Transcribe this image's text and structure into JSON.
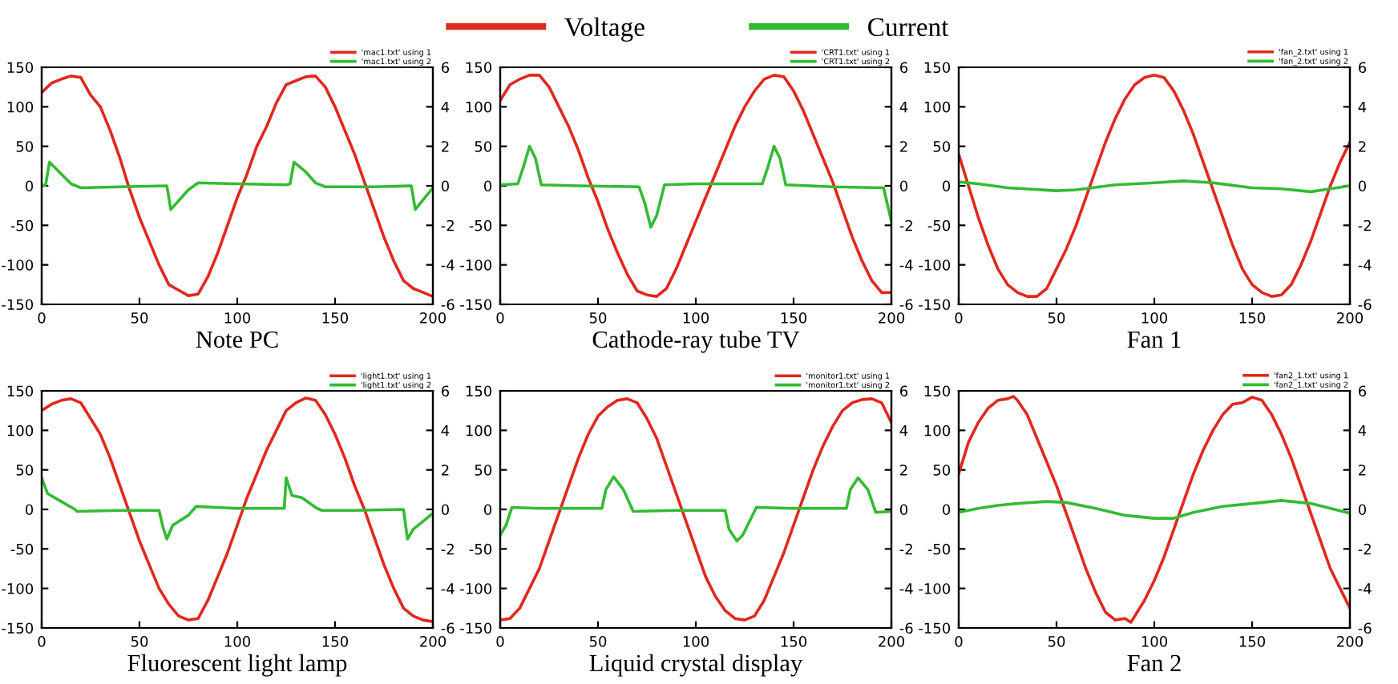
{
  "chart_data": [
    {
      "type": "other",
      "legend": "top",
      "series": [
        {
          "name": "Voltage",
          "color": "#e0281e"
        },
        {
          "name": "Current",
          "color": "#33bb33"
        }
      ]
    },
    {
      "type": "line",
      "xlabel": "Note PC",
      "xlim": [
        0,
        200
      ],
      "xticks": [
        0,
        50,
        100,
        150,
        200
      ],
      "ylim": [
        -150,
        150
      ],
      "yticks": [
        -150,
        -100,
        -50,
        0,
        50,
        100,
        150
      ],
      "y2lim": [
        -6,
        6
      ],
      "y2ticks": [
        -6,
        -4,
        -2,
        0,
        2,
        4,
        6
      ],
      "legend": "top right",
      "grid": false,
      "series": [
        {
          "name": "'mac1.txt' using 1",
          "color": "#e0281e",
          "x": [
            0,
            5,
            10,
            15,
            20,
            25,
            30,
            35,
            40,
            45,
            50,
            55,
            60,
            65,
            70,
            75,
            80,
            85,
            90,
            95,
            100,
            105,
            110,
            115,
            120,
            125,
            130,
            135,
            140,
            145,
            150,
            155,
            160,
            165,
            170,
            175,
            180,
            185,
            190,
            195,
            200
          ],
          "values": [
            118,
            130,
            135,
            139,
            137,
            115,
            100,
            70,
            35,
            -5,
            -40,
            -70,
            -100,
            -125,
            -132,
            -139,
            -137,
            -115,
            -85,
            -50,
            -15,
            15,
            50,
            75,
            105,
            128,
            133,
            138,
            139,
            125,
            100,
            70,
            40,
            5,
            -30,
            -65,
            -95,
            -120,
            -130,
            -135,
            -140
          ]
        },
        {
          "name": "'mac1.txt' using 2",
          "color": "#33bb33",
          "axis": "y2",
          "x": [
            0,
            2,
            4,
            10,
            15,
            20,
            40,
            64,
            66,
            75,
            80,
            100,
            125,
            127,
            129,
            135,
            140,
            145,
            170,
            189,
            191,
            200
          ],
          "values": [
            0,
            0.05,
            1.2,
            0.6,
            0.1,
            -0.1,
            -0.05,
            0,
            -1.2,
            -0.2,
            0.15,
            0.1,
            0.05,
            0.1,
            1.2,
            0.7,
            0.15,
            -0.05,
            -0.05,
            0,
            -1.2,
            -0.1
          ]
        }
      ]
    },
    {
      "type": "line",
      "xlabel": "Cathode-ray tube TV",
      "xlim": [
        0,
        200
      ],
      "xticks": [
        0,
        50,
        100,
        150,
        200
      ],
      "ylim": [
        -150,
        150
      ],
      "yticks": [
        -150,
        -100,
        -50,
        0,
        50,
        100,
        150
      ],
      "y2lim": [
        -6,
        6
      ],
      "y2ticks": [
        -6,
        -4,
        -2,
        0,
        2,
        4,
        6
      ],
      "legend": "top right",
      "grid": false,
      "series": [
        {
          "name": "'CRT1.txt' using 1",
          "color": "#e0281e",
          "x": [
            0,
            5,
            10,
            15,
            20,
            25,
            30,
            35,
            40,
            45,
            50,
            55,
            60,
            65,
            70,
            75,
            80,
            85,
            90,
            95,
            100,
            105,
            110,
            115,
            120,
            125,
            130,
            135,
            140,
            145,
            150,
            155,
            160,
            165,
            170,
            175,
            180,
            185,
            190,
            195,
            200
          ],
          "values": [
            108,
            128,
            135,
            140,
            140,
            125,
            100,
            75,
            45,
            10,
            -20,
            -55,
            -85,
            -112,
            -133,
            -138,
            -140,
            -130,
            -105,
            -75,
            -45,
            -15,
            15,
            45,
            75,
            100,
            120,
            135,
            140,
            138,
            120,
            95,
            65,
            35,
            5,
            -30,
            -65,
            -95,
            -120,
            -135,
            -135
          ]
        },
        {
          "name": "'CRT1.txt' using 2",
          "color": "#33bb33",
          "axis": "y2",
          "x": [
            0,
            9,
            12,
            15,
            18,
            21,
            40,
            71,
            74,
            77,
            80,
            84,
            100,
            134,
            137,
            140,
            143,
            146,
            170,
            196,
            200
          ],
          "values": [
            0.05,
            0.1,
            1.0,
            2.0,
            1.4,
            0.05,
            0,
            -0.05,
            -0.9,
            -2.1,
            -1.5,
            0.05,
            0.1,
            0.1,
            1.0,
            2.0,
            1.4,
            0.05,
            -0.05,
            -0.1,
            -1.8
          ]
        }
      ]
    },
    {
      "type": "line",
      "xlabel": "Fan 1",
      "xlim": [
        0,
        200
      ],
      "xticks": [
        0,
        50,
        100,
        150,
        200
      ],
      "ylim": [
        -150,
        150
      ],
      "yticks": [
        -150,
        -100,
        -50,
        0,
        50,
        100,
        150
      ],
      "y2lim": [
        -6,
        6
      ],
      "y2ticks": [
        -6,
        -4,
        -2,
        0,
        2,
        4,
        6
      ],
      "legend": "top right",
      "grid": false,
      "series": [
        {
          "name": "'fan_2.txt' using 1",
          "color": "#e0281e",
          "x": [
            0,
            5,
            10,
            15,
            20,
            25,
            30,
            35,
            40,
            45,
            50,
            55,
            60,
            65,
            70,
            75,
            80,
            85,
            90,
            95,
            100,
            105,
            110,
            115,
            120,
            125,
            130,
            135,
            140,
            145,
            150,
            155,
            160,
            165,
            170,
            175,
            180,
            185,
            190,
            195,
            200
          ],
          "values": [
            40,
            0,
            -40,
            -75,
            -105,
            -125,
            -135,
            -140,
            -140,
            -130,
            -105,
            -80,
            -50,
            -15,
            20,
            55,
            85,
            110,
            128,
            137,
            140,
            137,
            120,
            95,
            65,
            30,
            -5,
            -40,
            -75,
            -105,
            -125,
            -135,
            -140,
            -138,
            -125,
            -100,
            -70,
            -35,
            0,
            30,
            55
          ]
        },
        {
          "name": "'fan_2.txt' using 2",
          "color": "#33bb33",
          "axis": "y2",
          "x": [
            0,
            10,
            25,
            50,
            60,
            80,
            100,
            115,
            130,
            150,
            165,
            180,
            190,
            200
          ],
          "values": [
            0.2,
            0.1,
            -0.1,
            -0.25,
            -0.2,
            0.05,
            0.15,
            0.25,
            0.15,
            -0.1,
            -0.15,
            -0.3,
            -0.15,
            0
          ]
        }
      ]
    },
    {
      "type": "line",
      "xlabel": "Fluorescent light lamp",
      "xlim": [
        0,
        200
      ],
      "xticks": [
        0,
        50,
        100,
        150,
        200
      ],
      "ylim": [
        -150,
        150
      ],
      "yticks": [
        -150,
        -100,
        -50,
        0,
        50,
        100,
        150
      ],
      "y2lim": [
        -6,
        6
      ],
      "y2ticks": [
        -6,
        -4,
        -2,
        0,
        2,
        4,
        6
      ],
      "legend": "top right",
      "grid": false,
      "series": [
        {
          "name": "'light1.txt' using 1",
          "color": "#e0281e",
          "x": [
            0,
            5,
            10,
            15,
            20,
            25,
            30,
            35,
            40,
            45,
            50,
            55,
            60,
            65,
            70,
            75,
            80,
            85,
            90,
            95,
            100,
            105,
            110,
            115,
            120,
            125,
            130,
            135,
            140,
            145,
            150,
            155,
            160,
            165,
            170,
            175,
            180,
            185,
            190,
            195,
            200
          ],
          "values": [
            125,
            133,
            138,
            140,
            135,
            115,
            95,
            65,
            30,
            -5,
            -40,
            -70,
            -100,
            -120,
            -135,
            -140,
            -138,
            -115,
            -85,
            -55,
            -20,
            15,
            45,
            75,
            100,
            125,
            135,
            141,
            138,
            120,
            95,
            65,
            30,
            0,
            -35,
            -70,
            -100,
            -125,
            -135,
            -140,
            -142
          ]
        },
        {
          "name": "'light1.txt' using 2",
          "color": "#33bb33",
          "axis": "y2",
          "x": [
            0,
            3,
            10,
            17,
            18,
            40,
            60,
            62,
            64,
            67,
            75,
            79,
            100,
            124,
            125,
            128,
            133,
            140,
            143,
            160,
            185,
            187,
            190,
            195,
            200
          ],
          "values": [
            1.6,
            0.8,
            0.4,
            0,
            -0.1,
            -0.05,
            -0.05,
            -0.9,
            -1.5,
            -0.8,
            -0.3,
            0.15,
            0.05,
            0.05,
            1.6,
            0.7,
            0.6,
            0.1,
            -0.05,
            -0.05,
            0,
            -1.5,
            -1.0,
            -0.6,
            -0.2
          ]
        }
      ]
    },
    {
      "type": "line",
      "xlabel": "Liquid crystal display",
      "xlim": [
        0,
        200
      ],
      "xticks": [
        0,
        50,
        100,
        150,
        200
      ],
      "ylim": [
        -150,
        150
      ],
      "yticks": [
        -150,
        -100,
        -50,
        0,
        50,
        100,
        150
      ],
      "y2lim": [
        -6,
        6
      ],
      "y2ticks": [
        -6,
        -4,
        -2,
        0,
        2,
        4,
        6
      ],
      "legend": "top right",
      "grid": false,
      "series": [
        {
          "name": "'monitor1.txt' using 1",
          "color": "#e0281e",
          "x": [
            0,
            5,
            10,
            15,
            20,
            25,
            30,
            35,
            40,
            45,
            50,
            55,
            60,
            65,
            70,
            75,
            80,
            85,
            90,
            95,
            100,
            105,
            110,
            115,
            120,
            125,
            130,
            135,
            140,
            145,
            150,
            155,
            160,
            165,
            170,
            175,
            180,
            185,
            190,
            195,
            200
          ],
          "values": [
            -140,
            -138,
            -125,
            -100,
            -75,
            -40,
            -5,
            30,
            65,
            95,
            118,
            130,
            138,
            140,
            135,
            115,
            90,
            55,
            20,
            -15,
            -50,
            -85,
            -110,
            -128,
            -138,
            -140,
            -135,
            -115,
            -85,
            -55,
            -20,
            15,
            50,
            80,
            105,
            125,
            135,
            139,
            140,
            135,
            110
          ]
        },
        {
          "name": "'monitor1.txt' using 2",
          "color": "#33bb33",
          "axis": "y2",
          "x": [
            0,
            3,
            6,
            20,
            52,
            54,
            58,
            63,
            68,
            90,
            115,
            117,
            121,
            124,
            131,
            150,
            177,
            179,
            183,
            188,
            192,
            200
          ],
          "values": [
            -1.3,
            -0.8,
            0.1,
            0.05,
            0.05,
            1.0,
            1.65,
            1.0,
            -0.1,
            -0.05,
            -0.05,
            -1.0,
            -1.6,
            -1.3,
            0.1,
            0.05,
            0.05,
            1.0,
            1.6,
            1.0,
            -0.15,
            -0.1
          ]
        }
      ]
    },
    {
      "type": "line",
      "xlabel": "Fan 2",
      "xlim": [
        0,
        200
      ],
      "xticks": [
        0,
        50,
        100,
        150,
        200
      ],
      "ylim": [
        -150,
        150
      ],
      "yticks": [
        -150,
        -100,
        -50,
        0,
        50,
        100,
        150
      ],
      "y2lim": [
        -6,
        6
      ],
      "y2ticks": [
        -6,
        -4,
        -2,
        0,
        2,
        4,
        6
      ],
      "legend": "top right",
      "grid": false,
      "series": [
        {
          "name": "'fan2_1.txt' using 1",
          "color": "#e0281e",
          "x": [
            0,
            5,
            10,
            15,
            20,
            25,
            28,
            30,
            35,
            40,
            45,
            50,
            55,
            60,
            65,
            70,
            75,
            80,
            85,
            88,
            90,
            95,
            100,
            105,
            110,
            115,
            120,
            125,
            130,
            135,
            140,
            145,
            150,
            155,
            160,
            165,
            170,
            175,
            180,
            185,
            190,
            195,
            200
          ],
          "values": [
            45,
            85,
            110,
            128,
            138,
            140,
            143,
            138,
            120,
            90,
            60,
            30,
            -5,
            -40,
            -75,
            -105,
            -130,
            -140,
            -138,
            -143,
            -135,
            -115,
            -90,
            -60,
            -25,
            10,
            45,
            75,
            100,
            120,
            133,
            135,
            142,
            138,
            120,
            95,
            65,
            30,
            -5,
            -40,
            -75,
            -100,
            -125
          ]
        },
        {
          "name": "'fan2_1.txt' using 2",
          "color": "#33bb33",
          "axis": "y2",
          "x": [
            0,
            10,
            20,
            30,
            45,
            55,
            70,
            85,
            100,
            110,
            120,
            135,
            150,
            165,
            180,
            200
          ],
          "values": [
            -0.15,
            0.05,
            0.2,
            0.3,
            0.4,
            0.35,
            0.05,
            -0.3,
            -0.45,
            -0.45,
            -0.15,
            0.15,
            0.3,
            0.45,
            0.3,
            -0.2
          ]
        }
      ]
    }
  ]
}
